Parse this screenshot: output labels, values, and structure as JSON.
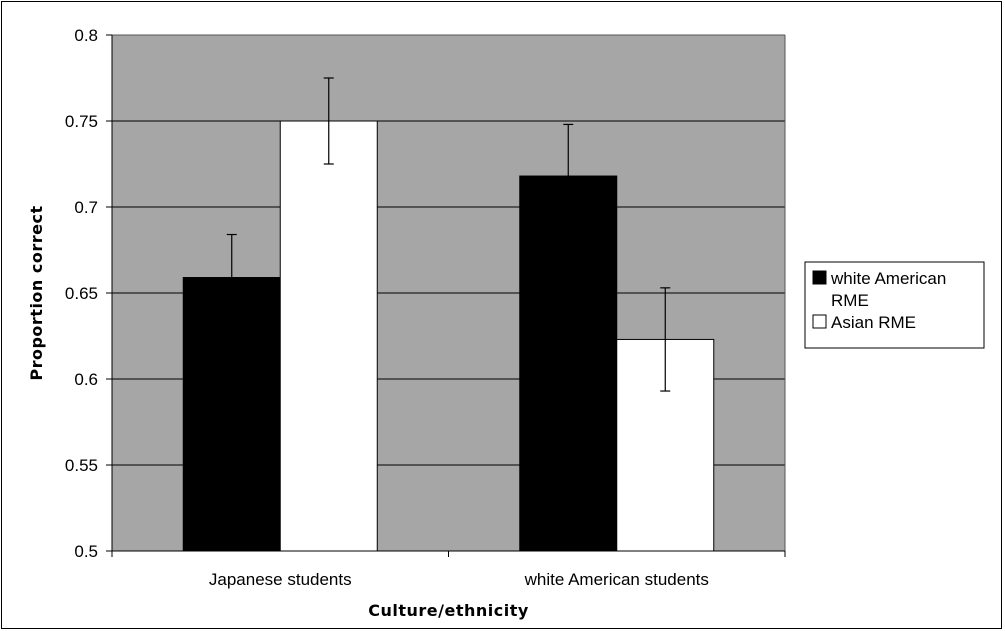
{
  "chart_data": {
    "type": "bar",
    "xlabel": "Culture/ethnicity",
    "ylabel": "Proportion correct",
    "ylim": [
      0.5,
      0.8
    ],
    "yticks": [
      0.5,
      0.55,
      0.6,
      0.65,
      0.7,
      0.75,
      0.8
    ],
    "ytick_labels": [
      "0.5",
      "0.55",
      "0.6",
      "0.65",
      "0.7",
      "0.75",
      "0.8"
    ],
    "categories": [
      "Japanese students",
      "white American students"
    ],
    "series": [
      {
        "name": "white American RME",
        "legend_lines": [
          "white American",
          "RME"
        ],
        "color": "#000000",
        "values": [
          0.659,
          0.718
        ],
        "errors": [
          0.025,
          0.03
        ]
      },
      {
        "name": "Asian RME",
        "legend_lines": [
          "Asian RME"
        ],
        "color": "#ffffff",
        "values": [
          0.75,
          0.623
        ],
        "errors": [
          0.025,
          0.03
        ]
      }
    ],
    "grid": true,
    "plot_background": "#a6a6a6",
    "legend_position": "right"
  }
}
